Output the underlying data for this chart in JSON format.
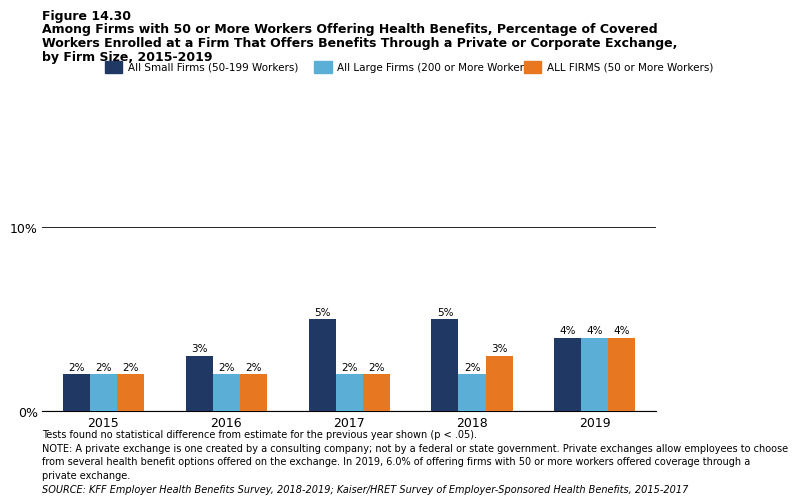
{
  "figure_label": "Figure 14.30",
  "title_line1": "Among Firms with 50 or More Workers Offering Health Benefits, Percentage of Covered",
  "title_line2": "Workers Enrolled at a Firm That Offers Benefits Through a Private or Corporate Exchange,",
  "title_line3": "by Firm Size, 2015-2019",
  "years": [
    2015,
    2016,
    2017,
    2018,
    2019
  ],
  "series": [
    {
      "label": "All Small Firms (50-199 Workers)",
      "color": "#1f3864",
      "values": [
        2,
        3,
        5,
        5,
        4
      ]
    },
    {
      "label": "All Large Firms (200 or More Workers)",
      "color": "#5bafd6",
      "values": [
        2,
        2,
        2,
        2,
        4
      ]
    },
    {
      "label": "ALL FIRMS (50 or More Workers)",
      "color": "#e87722",
      "values": [
        2,
        2,
        2,
        3,
        4
      ]
    }
  ],
  "ylim": [
    0,
    12
  ],
  "bar_width": 0.22,
  "footnote_line1": "Tests found no statistical difference from estimate for the previous year shown (p < .05).",
  "footnote_line2": "NOTE: A private exchange is one created by a consulting company; not by a federal or state government. Private exchanges allow employees to choose",
  "footnote_line3": "from several health benefit options offered on the exchange. In 2019, 6.0% of offering firms with 50 or more workers offered coverage through a",
  "footnote_line4": "private exchange.",
  "footnote_line5": "SOURCE: KFF Employer Health Benefits Survey, 2018-2019; Kaiser/HRET Survey of Employer-Sponsored Health Benefits, 2015-2017",
  "background_color": "#ffffff"
}
